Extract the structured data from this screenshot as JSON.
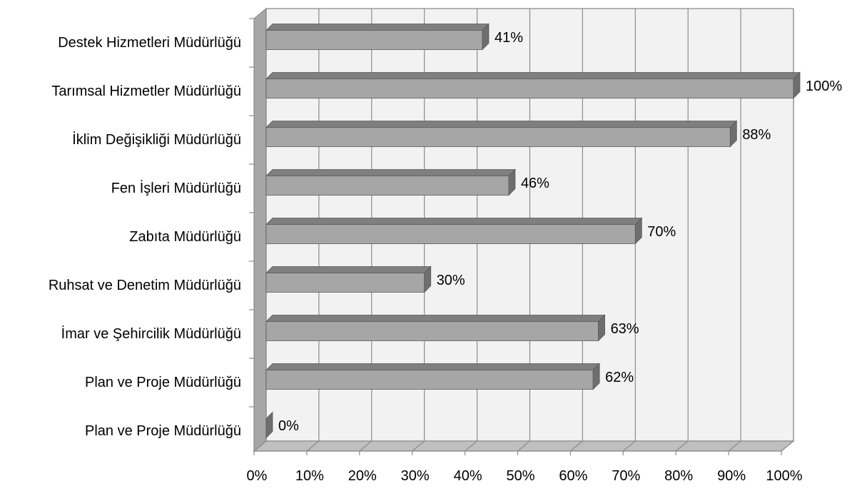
{
  "chart_data": {
    "type": "bar",
    "orientation": "horizontal",
    "style": "3d-clustered",
    "categories": [
      "Destek Hizmetleri Müdürlüğü",
      "Tarımsal Hizmetler Müdürlüğü",
      "İklim Değişikliği Müdürlüğü",
      "Fen İşleri Müdürlüğü",
      "Zabıta Müdürlüğü",
      "Ruhsat ve Denetim Müdürlüğü",
      "İmar ve Şehircilik Müdürlüğü",
      "Plan ve Proje Müdürlüğü",
      "Plan ve Proje Müdürlüğü"
    ],
    "values": [
      41,
      100,
      88,
      46,
      70,
      30,
      63,
      62,
      0
    ],
    "data_labels": [
      "41%",
      "100%",
      "88%",
      "46%",
      "70%",
      "30%",
      "63%",
      "62%",
      "0%"
    ],
    "x_ticks": [
      "0%",
      "10%",
      "20%",
      "30%",
      "40%",
      "50%",
      "60%",
      "70%",
      "80%",
      "90%",
      "100%"
    ],
    "xlim": [
      0,
      100
    ],
    "grid": true,
    "legend": "none",
    "title": "",
    "xlabel": "",
    "ylabel": "",
    "colors": {
      "bar_front": "#a6a6a6",
      "bar_top": "#7f7f7f",
      "bar_side": "#6e6e6e",
      "bar_outline": "#5a5a5a",
      "wall": "#f2f2f2",
      "wall_left": "#a6a6a6",
      "floor": "#bfbfbf",
      "gridline": "#8c8c8c"
    }
  }
}
